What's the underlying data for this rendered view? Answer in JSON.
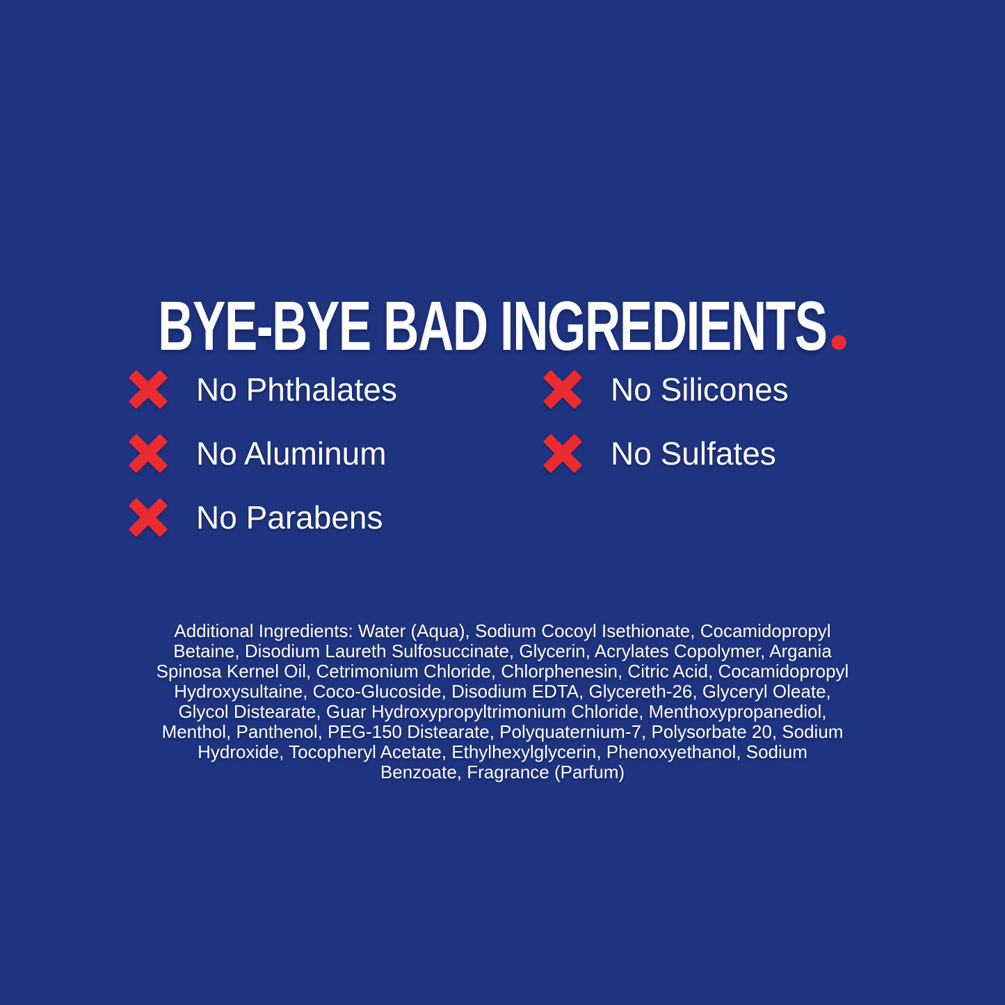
{
  "colors": {
    "background": "#1e3480",
    "accent_red": "#eb2a32",
    "text": "#ffffff"
  },
  "heading": {
    "text": "BYE-BYE BAD INGREDIENTS",
    "period": "."
  },
  "claims": {
    "left": [
      "No Phthalates",
      "No Aluminum",
      "No Parabens"
    ],
    "right": [
      "No Silicones",
      "No Sulfates"
    ]
  },
  "icons": {
    "claim_bullet": "red-x-cross"
  },
  "ingredients": {
    "lines": [
      "Additional Ingredients: Water (Aqua), Sodium Cocoyl Isethionate, Cocamidopropyl",
      "Betaine, Disodium Laureth Sulfosuccinate, Glycerin, Acrylates Copolymer, Argania",
      "Spinosa Kernel Oil, Cetrimonium Chloride, Chlorphenesin, Citric Acid, Cocamidopropyl",
      "Hydroxysultaine, Coco-Glucoside, Disodium EDTA, Glycereth-26, Glyceryl Oleate,",
      "Glycol Distearate, Guar Hydroxypropyltrimonium Chloride, Menthoxypropanediol,",
      "Menthol, Panthenol, PEG-150 Distearate, Polyquaternium-7, Polysorbate 20, Sodium",
      "Hydroxide, Tocopheryl Acetate, Ethylhexylglycerin, Phenoxyethanol, Sodium",
      "Benzoate, Fragrance (Parfum)"
    ]
  }
}
